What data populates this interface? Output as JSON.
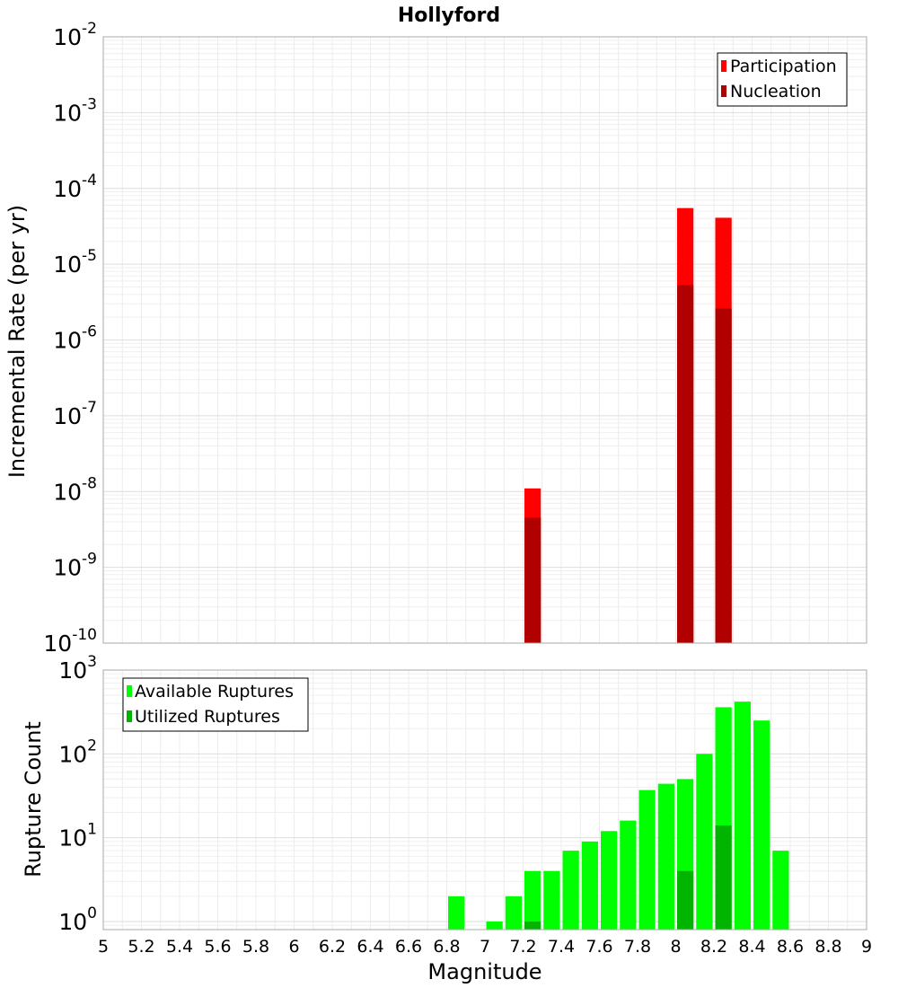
{
  "title": "Hollyford",
  "chart_data": [
    {
      "type": "bar",
      "name": "rate-panel",
      "ylabel": "Incremental Rate (per yr)",
      "yscale": "log",
      "ylim": [
        1e-10,
        0.01
      ],
      "ytick_exponents": [
        "-10",
        "-9",
        "-8",
        "-7",
        "-6",
        "-5",
        "-4",
        "-3",
        "-2"
      ],
      "ytick_base": "10",
      "xlim": [
        5,
        9
      ],
      "bin_width": 0.1,
      "grid": true,
      "legend": {
        "placement": "top-right",
        "entries": [
          {
            "name": "Participation",
            "color": "#ff0000"
          },
          {
            "name": "Nucleation",
            "color": "#b00000"
          }
        ]
      },
      "series": [
        {
          "name": "Participation",
          "color": "#ff0000",
          "points": [
            [
              7.25,
              1.1e-08
            ],
            [
              8.05,
              5.5e-05
            ],
            [
              8.25,
              4.1e-05
            ]
          ]
        },
        {
          "name": "Nucleation",
          "color": "#b00000",
          "points": [
            [
              7.25,
              4.5e-09
            ],
            [
              8.05,
              5.3e-06
            ],
            [
              8.25,
              2.6e-06
            ]
          ]
        }
      ]
    },
    {
      "type": "bar",
      "name": "count-panel",
      "ylabel": "Rupture Count",
      "yscale": "log",
      "ylim": [
        0.8,
        1000
      ],
      "ytick_exponents": [
        "0",
        "1",
        "2",
        "3"
      ],
      "ytick_base": "10",
      "xlabel": "Magnitude",
      "xlim": [
        5,
        9
      ],
      "xticks": [
        "5",
        "5.2",
        "5.4",
        "5.6",
        "5.8",
        "6",
        "6.2",
        "6.4",
        "6.6",
        "6.8",
        "7",
        "7.2",
        "7.4",
        "7.6",
        "7.8",
        "8",
        "8.2",
        "8.4",
        "8.6",
        "8.8",
        "9"
      ],
      "bin_width": 0.1,
      "grid": true,
      "legend": {
        "placement": "top-left",
        "entries": [
          {
            "name": "Available Ruptures",
            "color": "#00ff00"
          },
          {
            "name": "Utilized Ruptures",
            "color": "#00b400"
          }
        ]
      },
      "series": [
        {
          "name": "Available Ruptures",
          "color": "#00ff00",
          "points": [
            [
              6.85,
              2
            ],
            [
              7.05,
              1
            ],
            [
              7.15,
              2
            ],
            [
              7.25,
              4
            ],
            [
              7.35,
              4
            ],
            [
              7.45,
              7
            ],
            [
              7.55,
              9
            ],
            [
              7.65,
              12
            ],
            [
              7.75,
              16
            ],
            [
              7.85,
              37
            ],
            [
              7.95,
              44
            ],
            [
              8.05,
              50
            ],
            [
              8.15,
              100
            ],
            [
              8.25,
              360
            ],
            [
              8.35,
              420
            ],
            [
              8.45,
              250
            ],
            [
              8.55,
              7
            ]
          ]
        },
        {
          "name": "Utilized Ruptures",
          "color": "#00b400",
          "points": [
            [
              7.25,
              1
            ],
            [
              8.05,
              4
            ],
            [
              8.25,
              14
            ]
          ]
        }
      ]
    }
  ]
}
